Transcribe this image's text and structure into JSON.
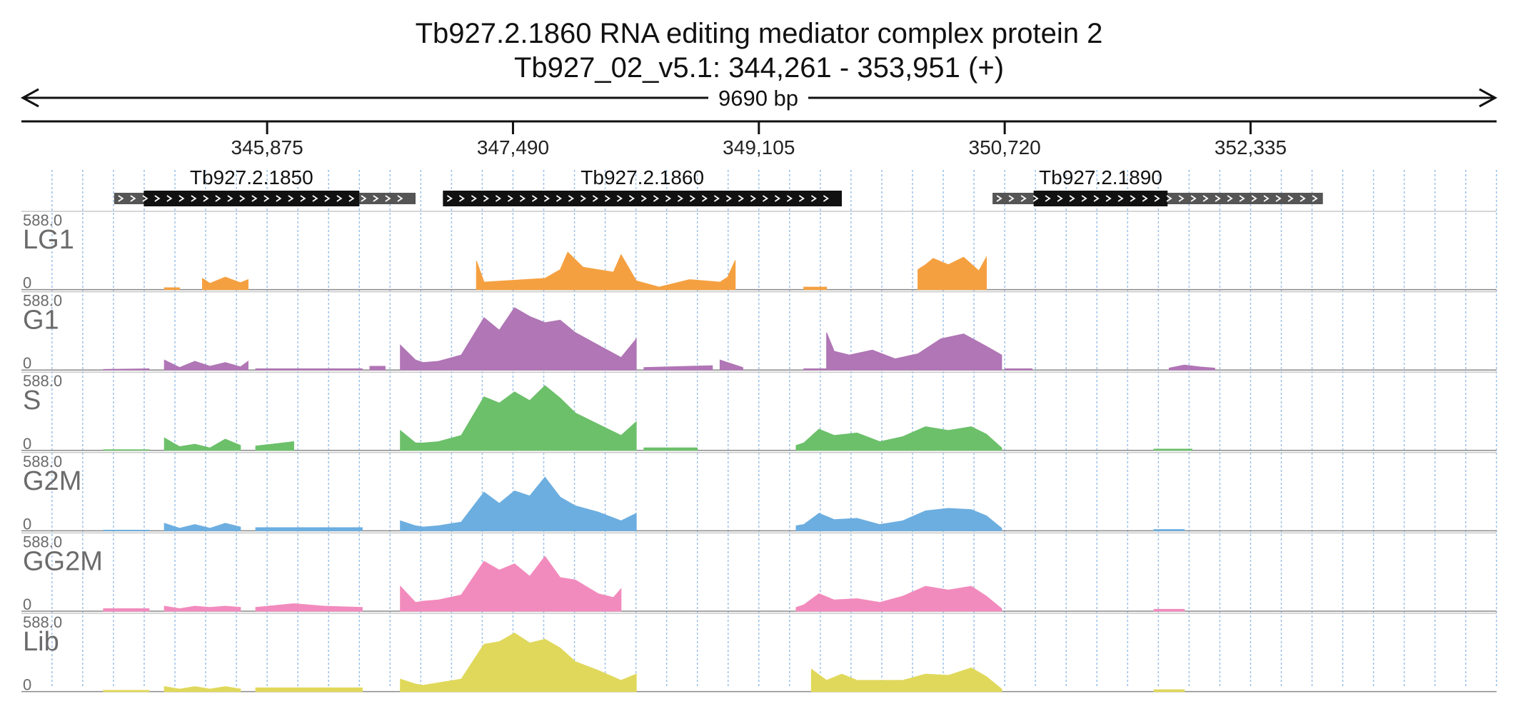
{
  "chart_data": {
    "type": "area",
    "title": "Tb927.2.1860  RNA editing mediator complex protein 2",
    "subtitle": "Tb927_02_v5.1: 344,261 - 353,951 (+)",
    "region": {
      "chrom": "Tb927_02_v5.1",
      "start": 344261,
      "end": 353951,
      "strand": "+"
    },
    "span_label": "9690 bp",
    "axis_ticks": [
      {
        "value": 345875,
        "label": "345,875"
      },
      {
        "value": 347490,
        "label": "347,490"
      },
      {
        "value": 349105,
        "label": "349,105"
      },
      {
        "value": 350720,
        "label": "350,720"
      },
      {
        "value": 352335,
        "label": "352,335"
      }
    ],
    "genes": [
      {
        "name": "Tb927.2.1850",
        "start": 344870,
        "end": 346850,
        "cds_start": 345065,
        "cds_end": 346480
      },
      {
        "name": "Tb927.2.1860",
        "start": 347030,
        "end": 349650,
        "cds_start": 347030,
        "cds_end": 349650
      },
      {
        "name": "Tb927.2.1890",
        "start": 350640,
        "end": 352810,
        "cds_start": 350910,
        "cds_end": 351790
      }
    ],
    "grid": true,
    "tracks": [
      {
        "name": "LG1",
        "ymax_label": "588.0",
        "ymin_label": "0",
        "ylim": [
          0,
          588
        ],
        "color": "#f5a040",
        "segments": [
          {
            "x": [
              345200,
              345300
            ],
            "y": [
              15,
              15
            ]
          },
          {
            "x": [
              345450,
              345500,
              345600,
              345700,
              345750
            ],
            "y": [
              90,
              50,
              100,
              55,
              80
            ]
          },
          {
            "x": [
              347250,
              347300,
              347500,
              347700,
              347800,
              347850,
              347950,
              348050,
              348150,
              348200,
              348300,
              348450,
              348650,
              348850,
              348900,
              348950
            ],
            "y": [
              230,
              60,
              75,
              90,
              160,
              300,
              180,
              160,
              140,
              280,
              70,
              20,
              80,
              60,
              100,
              235
            ]
          },
          {
            "x": [
              349400,
              349550
            ],
            "y": [
              20,
              20
            ]
          },
          {
            "x": [
              350150,
              350200,
              350250,
              350350,
              350450,
              350550,
              350600
            ],
            "y": [
              160,
              200,
              250,
              200,
              260,
              150,
              260
            ]
          }
        ]
      },
      {
        "name": "G1",
        "ymax_label": "588.0",
        "ymin_label": "0",
        "ylim": [
          0,
          588
        ],
        "color": "#b076b5",
        "segments": [
          {
            "x": [
              344800,
              345100
            ],
            "y": [
              5,
              10
            ]
          },
          {
            "x": [
              345200,
              345300,
              345400,
              345500,
              345600,
              345700,
              345750
            ],
            "y": [
              80,
              20,
              70,
              30,
              60,
              25,
              70
            ]
          },
          {
            "x": [
              345800,
              346500
            ],
            "y": [
              10,
              10
            ]
          },
          {
            "x": [
              346550,
              346650
            ],
            "y": [
              30,
              30
            ]
          },
          {
            "x": [
              346750,
              346850,
              346900,
              347000,
              347150,
              347300,
              347400,
              347500,
              347600,
              347700,
              347800,
              347900,
              348050,
              348200,
              348300
            ],
            "y": [
              200,
              80,
              60,
              70,
              120,
              420,
              320,
              500,
              430,
              380,
              400,
              300,
              200,
              100,
              250
            ]
          },
          {
            "x": [
              348350,
              348800
            ],
            "y": [
              20,
              35
            ]
          },
          {
            "x": [
              348850,
              349000
            ],
            "y": [
              80,
              20
            ]
          },
          {
            "x": [
              349400,
              349550
            ],
            "y": [
              10,
              10
            ]
          },
          {
            "x": [
              349550,
              349600,
              349700,
              349850,
              350000,
              350150,
              350300,
              350450,
              350600,
              350700
            ],
            "y": [
              300,
              150,
              120,
              160,
              90,
              130,
              250,
              290,
              190,
              120
            ]
          },
          {
            "x": [
              350720,
              350900
            ],
            "y": [
              10,
              10
            ]
          },
          {
            "x": [
              351800,
              351900,
              352000,
              352100
            ],
            "y": [
              15,
              40,
              25,
              15
            ]
          }
        ]
      },
      {
        "name": "S",
        "ymax_label": "588.0",
        "ymin_label": "0",
        "ylim": [
          0,
          588
        ],
        "color": "#6cc06a",
        "segments": [
          {
            "x": [
              344800,
              345100
            ],
            "y": [
              5,
              5
            ]
          },
          {
            "x": [
              345200,
              345300,
              345400,
              345500,
              345600,
              345700
            ],
            "y": [
              100,
              30,
              50,
              20,
              90,
              40
            ]
          },
          {
            "x": [
              345800,
              346050
            ],
            "y": [
              35,
              70
            ]
          },
          {
            "x": [
              346750,
              346850,
              346900,
              347000,
              347150,
              347300,
              347400,
              347500,
              347600,
              347700,
              347800,
              347900,
              348050,
              348200,
              348300
            ],
            "y": [
              160,
              60,
              60,
              70,
              120,
              430,
              380,
              470,
              400,
              520,
              420,
              300,
              210,
              120,
              230
            ]
          },
          {
            "x": [
              348350,
              348700
            ],
            "y": [
              20,
              20
            ]
          },
          {
            "x": [
              349350,
              349400,
              349500,
              349600,
              349750,
              349900,
              350050,
              350200,
              350350,
              350500,
              350600,
              350700
            ],
            "y": [
              40,
              60,
              170,
              120,
              140,
              70,
              110,
              190,
              160,
              190,
              130,
              20
            ]
          },
          {
            "x": [
              351700,
              351950
            ],
            "y": [
              10,
              10
            ]
          }
        ]
      },
      {
        "name": "G2M",
        "ymax_label": "588.0",
        "ymin_label": "0",
        "ylim": [
          0,
          588
        ],
        "color": "#6caee0",
        "segments": [
          {
            "x": [
              344800,
              345100
            ],
            "y": [
              5,
              5
            ]
          },
          {
            "x": [
              345200,
              345300,
              345400,
              345500,
              345600,
              345700
            ],
            "y": [
              60,
              20,
              50,
              20,
              60,
              30
            ]
          },
          {
            "x": [
              345800,
              346500
            ],
            "y": [
              25,
              25
            ]
          },
          {
            "x": [
              346750,
              346850,
              346900,
              347000,
              347150,
              347300,
              347400,
              347500,
              347600,
              347700,
              347800,
              347900,
              348050,
              348200,
              348300
            ],
            "y": [
              80,
              40,
              30,
              40,
              70,
              310,
              220,
              320,
              280,
              430,
              270,
              200,
              150,
              80,
              140
            ]
          },
          {
            "x": [
              349350,
              349400,
              349500,
              349600,
              349750,
              349900,
              350050,
              350200,
              350350,
              350500,
              350600,
              350700
            ],
            "y": [
              40,
              50,
              140,
              90,
              100,
              50,
              80,
              160,
              180,
              170,
              120,
              20
            ]
          },
          {
            "x": [
              351700,
              351900
            ],
            "y": [
              10,
              10
            ]
          }
        ]
      },
      {
        "name": "GG2M",
        "ymax_label": "588.0",
        "ymin_label": "0",
        "ylim": [
          0,
          588
        ],
        "color": "#f28bbd",
        "segments": [
          {
            "x": [
              344800,
              345100
            ],
            "y": [
              20,
              20
            ]
          },
          {
            "x": [
              345200,
              345300,
              345400,
              345500,
              345600,
              345700
            ],
            "y": [
              40,
              20,
              40,
              30,
              40,
              30
            ]
          },
          {
            "x": [
              345800,
              346050,
              346250,
              346500
            ],
            "y": [
              30,
              60,
              40,
              30
            ]
          },
          {
            "x": [
              346750,
              346850,
              346900,
              347000,
              347150,
              347300,
              347400,
              347500,
              347600,
              347700,
              347800,
              347900,
              348050,
              348150,
              348200
            ],
            "y": [
              200,
              70,
              80,
              90,
              130,
              400,
              330,
              380,
              280,
              440,
              270,
              250,
              140,
              110,
              180
            ]
          },
          {
            "x": [
              349350,
              349400,
              349500,
              349600,
              349750,
              349900,
              350050,
              350200,
              350350,
              350500,
              350600,
              350700
            ],
            "y": [
              30,
              50,
              140,
              90,
              100,
              70,
              120,
              200,
              170,
              200,
              120,
              20
            ]
          },
          {
            "x": [
              351700,
              351900
            ],
            "y": [
              15,
              15
            ]
          }
        ]
      },
      {
        "name": "Lib",
        "ymax_label": "588.0",
        "ymin_label": "0",
        "ylim": [
          0,
          588
        ],
        "color": "#e0d85a",
        "segments": [
          {
            "x": [
              344800,
              345100
            ],
            "y": [
              10,
              10
            ]
          },
          {
            "x": [
              345200,
              345300,
              345400,
              345500,
              345600,
              345700
            ],
            "y": [
              40,
              20,
              40,
              20,
              40,
              20
            ]
          },
          {
            "x": [
              345800,
              346500
            ],
            "y": [
              30,
              30
            ]
          },
          {
            "x": [
              346750,
              346850,
              346900,
              347000,
              347150,
              347300,
              347400,
              347500,
              347600,
              347700,
              347800,
              347900,
              348050,
              348200,
              348300
            ],
            "y": [
              100,
              60,
              50,
              70,
              100,
              380,
              400,
              470,
              390,
              420,
              350,
              240,
              170,
              90,
              140
            ]
          },
          {
            "x": [
              349450,
              349550,
              349650,
              349750,
              349900,
              350050,
              350200,
              350350,
              350500,
              350600,
              350700
            ],
            "y": [
              180,
              90,
              140,
              90,
              90,
              90,
              140,
              130,
              190,
              120,
              20
            ]
          },
          {
            "x": [
              351700,
              351900
            ],
            "y": [
              15,
              15
            ]
          }
        ]
      }
    ]
  }
}
